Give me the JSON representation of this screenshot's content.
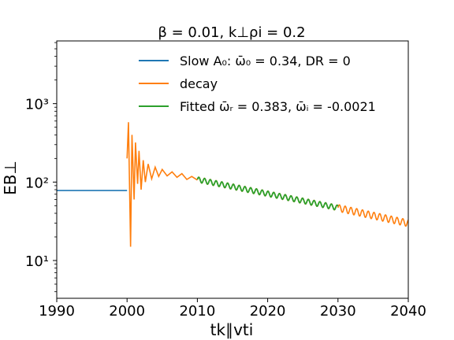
{
  "chart_data": {
    "type": "line",
    "title": "β = 0.01, k⊥ρi = 0.2",
    "xlabel": "tk∥vti",
    "ylabel": "EB⊥",
    "xlim": [
      1990,
      2040
    ],
    "ylim": [
      3.3,
      6300
    ],
    "yscale": "log",
    "grid": false,
    "legend_position": "top-right",
    "x_ticks": [
      1990,
      2000,
      2010,
      2020,
      2030,
      2040
    ],
    "x_tick_labels": [
      "1990",
      "2000",
      "2010",
      "2020",
      "2030",
      "2040"
    ],
    "y_ticks": [
      10,
      100,
      1000
    ],
    "y_tick_labels": [
      "10¹",
      "10²",
      "10³"
    ],
    "series": [
      {
        "name": "Slow A0: ω̄0 = 0.34, DR = 0",
        "color": "#1f77b4",
        "x": [
          1990,
          2000
        ],
        "y": [
          78,
          78
        ]
      },
      {
        "name": "decay",
        "color": "#ff7f0e",
        "x": [
          2000.0,
          2000.2,
          2000.5,
          2000.7,
          2001.0,
          2001.2,
          2001.5,
          2001.7,
          2002.0,
          2002.3,
          2002.6,
          2003.0,
          2003.5,
          2004.0,
          2004.5,
          2005.0,
          2005.7,
          2006.4,
          2007.1,
          2007.8,
          2008.5,
          2009.2,
          2010.0
        ],
        "y": [
          200,
          580,
          15,
          400,
          60,
          320,
          95,
          250,
          80,
          190,
          100,
          170,
          110,
          155,
          118,
          145,
          120,
          135,
          115,
          128,
          108,
          118,
          106
        ],
        "tail": {
          "x_start": 2030,
          "x_end": 2040,
          "y_start": 47,
          "y_end": 30
        }
      },
      {
        "name": "Fitted ω̄r = 0.383, ω̄i = -0.0021",
        "color": "#2ca02c",
        "x": [
          2010,
          2030
        ],
        "y": [
          108,
          47
        ]
      }
    ],
    "legend": [
      {
        "label": "Slow A₀: ω̄₀ = 0.34, DR = 0",
        "color": "#1f77b4"
      },
      {
        "label": "decay",
        "color": "#ff7f0e"
      },
      {
        "label": "Fitted ω̄ᵣ = 0.383, ω̄ᵢ = -0.0021",
        "color": "#2ca02c"
      }
    ]
  }
}
